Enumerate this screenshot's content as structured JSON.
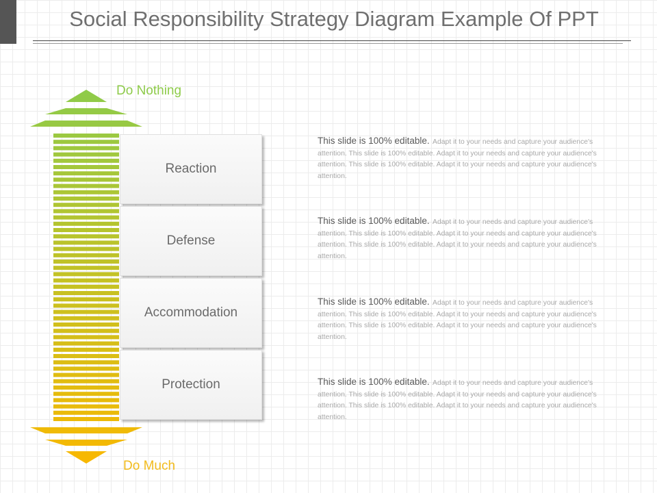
{
  "title": "Social Responsibility Strategy Diagram Example Of PPT",
  "arrow": {
    "top_label": "Do Nothing",
    "bottom_label": "Do Much",
    "top_color": "#8ecb4a",
    "bottom_color": "#f9b800"
  },
  "stages": [
    {
      "label": "Reaction",
      "lead": "This slide is 100% editable.",
      "body": "Adapt it to your needs and capture your audience's attention. This slide is 100% editable. Adapt it to your needs and capture your audience's attention. This slide is 100% editable. Adapt it to your needs and capture your audience's attention."
    },
    {
      "label": "Defense",
      "lead": "This slide is 100% editable.",
      "body": "Adapt it to your needs and capture your audience's attention. This slide is 100% editable. Adapt it to your needs and capture your audience's attention. This slide is 100% editable. Adapt it to your needs and capture your audience's attention."
    },
    {
      "label": "Accommodation",
      "lead": "This slide is 100% editable.",
      "body": "Adapt it to your needs and capture your audience's attention. This slide is 100% editable. Adapt it to your needs and capture your audience's attention. This slide is 100% editable. Adapt it to your needs and capture your audience's attention."
    },
    {
      "label": "Protection",
      "lead": "This slide is 100% editable.",
      "body": "Adapt it to your needs and capture your audience's attention. This slide is 100% editable. Adapt it to your needs and capture your audience's attention. This slide is 100% editable. Adapt it to your needs and capture your audience's attention."
    }
  ]
}
